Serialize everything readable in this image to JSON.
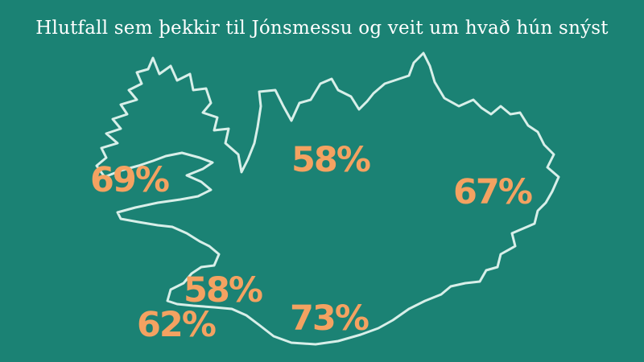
{
  "title": "Hlutfall sem þekkir til Jónsmessu og veit um hvað hún snýst",
  "colors": {
    "background": "#1b8274",
    "outline": "#d8efe9",
    "value_label": "#f4a261",
    "title": "#ffffff"
  },
  "regions": [
    {
      "id": "west",
      "value": "69%"
    },
    {
      "id": "north",
      "value": "58%"
    },
    {
      "id": "east",
      "value": "67%"
    },
    {
      "id": "capital",
      "value": "58%"
    },
    {
      "id": "southwest",
      "value": "62%"
    },
    {
      "id": "south",
      "value": "73%"
    }
  ]
}
